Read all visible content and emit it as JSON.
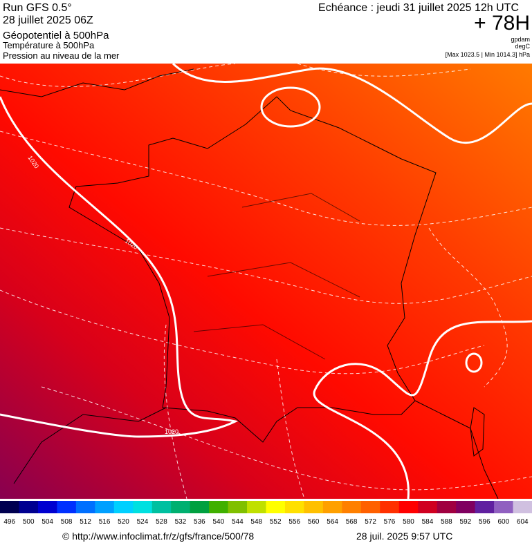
{
  "header": {
    "run": "Run GFS 0.5°",
    "date": "28 juillet 2025 06Z",
    "fields": [
      "Géopotentiel à 500hPa",
      "Température à 500hPa",
      "Pression au niveau de la mer"
    ],
    "echeance": "Echéance : jeudi 31 juillet 2025 12h UTC",
    "lead": "+ 78H",
    "units": [
      "gpdam",
      "degC"
    ],
    "range": "[Max 1023.5 | Min 1014.3] hPa"
  },
  "map": {
    "isobar_labels": [
      "1020",
      "1020",
      "1020"
    ]
  },
  "colorbar": {
    "levels": [
      496,
      500,
      504,
      508,
      512,
      516,
      520,
      524,
      528,
      532,
      536,
      540,
      544,
      548,
      552,
      556,
      560,
      564,
      568,
      572,
      576,
      580,
      584,
      588,
      592,
      596,
      600,
      604
    ],
    "colors": [
      "#000050",
      "#000090",
      "#0000d0",
      "#0030ff",
      "#0070ff",
      "#00a0ff",
      "#00d0ff",
      "#00e0e0",
      "#00c0a0",
      "#00b070",
      "#00a040",
      "#40b000",
      "#80c000",
      "#c0e000",
      "#ffff00",
      "#ffe000",
      "#ffc000",
      "#ffa000",
      "#ff8000",
      "#ff6000",
      "#ff3000",
      "#ff0000",
      "#d00020",
      "#a00040",
      "#800060",
      "#6020a0",
      "#9060c0",
      "#d0c0e0"
    ]
  },
  "footer": {
    "source": "© http://www.infoclimat.fr/z/gfs/france/500/78",
    "timestamp": "28 juil. 2025  9:57 UTC"
  }
}
